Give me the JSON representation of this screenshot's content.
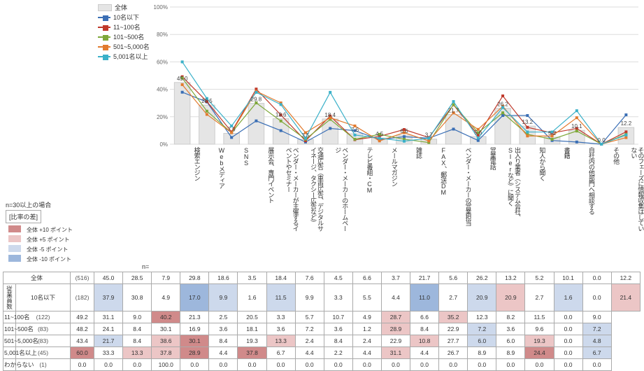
{
  "note": "n=30以上の場合",
  "legend_diff_title": "[比率の差]",
  "legend_diff": [
    {
      "label": "全体 +10 ポイント",
      "color": "#d08a8a"
    },
    {
      "label": "全体 +5 ポイント",
      "color": "#ecc6c6"
    },
    {
      "label": "全体 -5 ポイント",
      "color": "#cdd9ec"
    },
    {
      "label": "全体 -10 ポイント",
      "color": "#9db7dc"
    }
  ],
  "series": [
    {
      "key": "all",
      "label": "全体",
      "type": "bar",
      "color": "#e5e5e5"
    },
    {
      "key": "s1",
      "label": "10名以下",
      "color": "#3b6fb5",
      "marker": "square"
    },
    {
      "key": "s2",
      "label": "11~100名",
      "color": "#c0392b",
      "marker": "square"
    },
    {
      "key": "s3",
      "label": "101~500名",
      "color": "#7fa83a",
      "marker": "square"
    },
    {
      "key": "s4",
      "label": "501~5,000名",
      "color": "#e27b2f",
      "marker": "square"
    },
    {
      "key": "s5",
      "label": "5,001名以上",
      "color": "#3bb1c9",
      "marker": "square"
    }
  ],
  "chart": {
    "ymax": 100,
    "ytick": 20,
    "annot_points": [
      {
        "cat": 0,
        "v": 45.0
      },
      {
        "cat": 1,
        "v": 28.5
      },
      {
        "cat": 2,
        "v": 7.9
      },
      {
        "cat": 3,
        "v": 29.8
      },
      {
        "cat": 4,
        "v": 18.6
      },
      {
        "cat": 5,
        "v": 3.5
      },
      {
        "cat": 6,
        "v": 18.4
      },
      {
        "cat": 7,
        "v": 7.6
      },
      {
        "cat": 8,
        "v": 4.5
      },
      {
        "cat": 9,
        "v": 6.6
      },
      {
        "cat": 10,
        "v": 3.7
      },
      {
        "cat": 11,
        "v": 21.7
      },
      {
        "cat": 12,
        "v": 5.6
      },
      {
        "cat": 13,
        "v": 26.2
      },
      {
        "cat": 14,
        "v": 13.2
      },
      {
        "cat": 15,
        "v": 5.2
      },
      {
        "cat": 16,
        "v": 10.1
      },
      {
        "cat": 17,
        "v": 0.0
      },
      {
        "cat": 18,
        "v": 12.2
      }
    ]
  },
  "categories": [
    "検索エンジン",
    "Webメディア",
    "SNS",
    "展示会、専門イベント",
    "ベンダー・メーカーが主催するイベントやセミナー",
    "交通広告（車両広告、デジタルサイネージ、タクシー広告など）",
    "ベンダー・メーカーのホームページ",
    "テレビ番組・CM",
    "メールマガジン",
    "雑誌",
    "FAX、郵送DM",
    "ベンダー・メーカーの営業担当",
    "営業電話",
    "出入り業者（システム会社、SIerなど）に聞く",
    "知人から聞く",
    "書籍",
    "自社内の他部門へ相談する",
    "その他",
    "そのフェーズに情報収集はしていない"
  ],
  "rowgroup_label": "従業員数",
  "n_label": "n=",
  "rows": [
    {
      "label": "全体",
      "n": 516,
      "v": [
        45.0,
        28.5,
        7.9,
        29.8,
        18.6,
        3.5,
        18.4,
        7.6,
        4.5,
        6.6,
        3.7,
        21.7,
        5.6,
        26.2,
        13.2,
        5.2,
        10.1,
        0.0,
        12.2
      ],
      "d": [
        0,
        0,
        0,
        0,
        0,
        0,
        0,
        0,
        0,
        0,
        0,
        0,
        0,
        0,
        0,
        0,
        0,
        0,
        0
      ]
    },
    {
      "label": "10名以下",
      "n": 182,
      "v": [
        37.9,
        30.8,
        4.9,
        17.0,
        9.9,
        1.6,
        11.5,
        9.9,
        3.3,
        5.5,
        4.4,
        11.0,
        2.7,
        20.9,
        20.9,
        2.7,
        1.6,
        0.0,
        21.4
      ],
      "d": [
        -1,
        0,
        0,
        -2,
        -1,
        0,
        -1,
        0,
        0,
        0,
        0,
        -2,
        0,
        -1,
        1,
        0,
        -1,
        0,
        1
      ]
    },
    {
      "label": "11~100名",
      "n": 122,
      "v": [
        49.2,
        31.1,
        9.0,
        40.2,
        21.3,
        2.5,
        20.5,
        3.3,
        5.7,
        10.7,
        4.9,
        28.7,
        6.6,
        35.2,
        12.3,
        8.2,
        11.5,
        0.0,
        9.0
      ],
      "d": [
        0,
        0,
        0,
        2,
        0,
        0,
        0,
        0,
        0,
        0,
        0,
        1,
        0,
        1,
        0,
        0,
        0,
        0,
        0
      ]
    },
    {
      "label": "101~500名",
      "n": 83,
      "v": [
        48.2,
        24.1,
        8.4,
        30.1,
        16.9,
        3.6,
        18.1,
        3.6,
        7.2,
        3.6,
        1.2,
        28.9,
        8.4,
        22.9,
        7.2,
        3.6,
        9.6,
        0.0,
        7.2
      ],
      "d": [
        0,
        0,
        0,
        0,
        0,
        0,
        0,
        0,
        0,
        0,
        0,
        1,
        0,
        0,
        -1,
        0,
        0,
        0,
        -1
      ]
    },
    {
      "label": "501~5,000名",
      "n": 83,
      "v": [
        43.4,
        21.7,
        8.4,
        38.6,
        30.1,
        8.4,
        19.3,
        13.3,
        2.4,
        8.4,
        2.4,
        22.9,
        10.8,
        27.7,
        6.0,
        6.0,
        19.3,
        0.0,
        4.8
      ],
      "d": [
        0,
        -1,
        0,
        1,
        2,
        0,
        0,
        1,
        0,
        0,
        0,
        0,
        1,
        0,
        -1,
        0,
        1,
        0,
        -1
      ]
    },
    {
      "label": "5,001名以上",
      "n": 45,
      "v": [
        60.0,
        33.3,
        13.3,
        37.8,
        28.9,
        4.4,
        37.8,
        6.7,
        4.4,
        2.2,
        4.4,
        31.1,
        4.4,
        26.7,
        8.9,
        8.9,
        24.4,
        0.0,
        6.7
      ],
      "d": [
        2,
        0,
        1,
        1,
        2,
        0,
        2,
        0,
        0,
        0,
        0,
        1,
        0,
        0,
        0,
        0,
        2,
        0,
        -1
      ]
    },
    {
      "label": "わからない",
      "n": 1,
      "v": [
        0.0,
        0.0,
        0.0,
        100.0,
        0.0,
        0.0,
        0.0,
        0.0,
        0.0,
        0.0,
        0.0,
        0.0,
        0.0,
        0.0,
        0.0,
        0.0,
        0.0,
        0.0,
        0.0
      ],
      "d": [
        0,
        0,
        0,
        0,
        0,
        0,
        0,
        0,
        0,
        0,
        0,
        0,
        0,
        0,
        0,
        0,
        0,
        0,
        0
      ]
    }
  ],
  "diff_colors": {
    "-2": "#9db7dc",
    "-1": "#cdd9ec",
    "0": "#ffffff",
    "1": "#ecc6c6",
    "2": "#d08a8a"
  }
}
